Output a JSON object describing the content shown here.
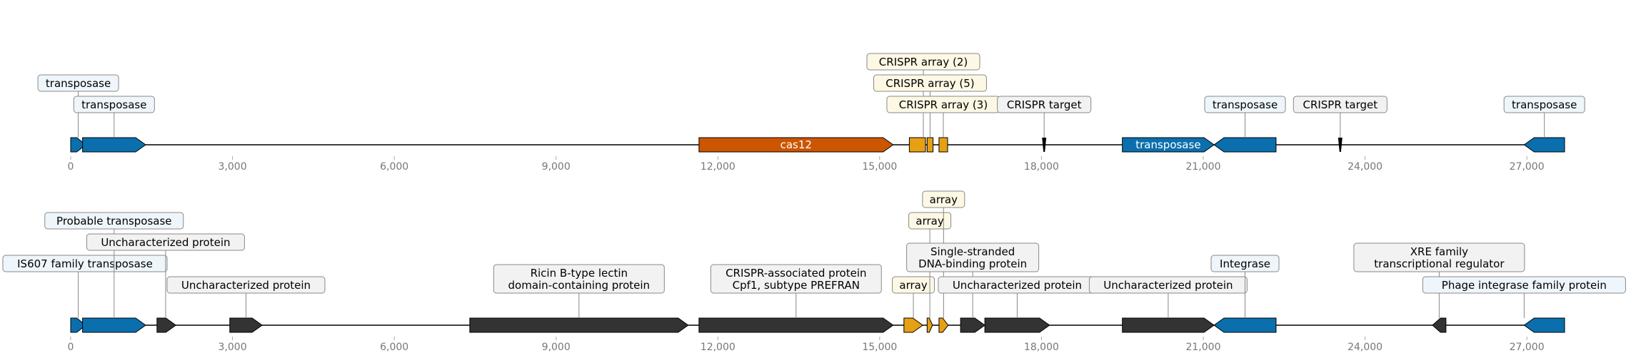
{
  "colors": {
    "transposase": "#0b6fad",
    "cas12": "#cc5500",
    "crispr": "#e6a014",
    "protein": "#333333",
    "box_blue_fill": "#eef6fb",
    "box_yellow_fill": "#fdf8e4",
    "box_grey_fill": "#f2f2f2",
    "tick_text": "#777777"
  },
  "axis": {
    "ticks": [
      "0",
      "3,000",
      "6,000",
      "9,000",
      "12,000",
      "15,000",
      "18,000",
      "21,000",
      "24,000",
      "27,000"
    ],
    "tick_values": [
      0,
      3000,
      6000,
      9000,
      12000,
      15000,
      18000,
      21000,
      24000,
      27000
    ],
    "max": 27700
  },
  "tracks": [
    {
      "features": [
        {
          "start": 0,
          "end": 280,
          "strand": 1,
          "kind": "transposase",
          "label": "transposase",
          "label_level": 3
        },
        {
          "start": 220,
          "end": 1390,
          "strand": 1,
          "kind": "transposase",
          "label": "transposase",
          "label_level": 2
        },
        {
          "start": 11650,
          "end": 15250,
          "strand": 1,
          "kind": "cas12",
          "inner_label": "cas12"
        },
        {
          "start": 15550,
          "end": 15850,
          "strand": 0,
          "kind": "crispr",
          "label": "CRISPR array (2)",
          "label_level": 4,
          "label_x": 15810
        },
        {
          "start": 15880,
          "end": 15990,
          "strand": 0,
          "kind": "crispr",
          "label": "CRISPR array (5)",
          "label_level": 3
        },
        {
          "start": 16100,
          "end": 16260,
          "strand": 0,
          "kind": "crispr",
          "label": "CRISPR array (3)",
          "label_level": 2
        },
        {
          "start": 18010,
          "end": 18090,
          "strand": 0,
          "kind": "target",
          "label": "CRISPR target",
          "label_level": 2
        },
        {
          "start": 19500,
          "end": 21200,
          "strand": 1,
          "kind": "transposase",
          "inner_label": "transposase"
        },
        {
          "start": 21200,
          "end": 22350,
          "strand": -1,
          "kind": "transposase",
          "label": "transposase",
          "label_level": 2
        },
        {
          "start": 23500,
          "end": 23580,
          "strand": 0,
          "kind": "target",
          "label": "CRISPR target",
          "label_level": 2
        },
        {
          "start": 26950,
          "end": 27700,
          "strand": -1,
          "kind": "transposase",
          "label": "transposase",
          "label_level": 2
        }
      ]
    },
    {
      "features": [
        {
          "start": 0,
          "end": 280,
          "strand": 1,
          "kind": "transposase",
          "label": "IS607 family transposase",
          "label_level": 3
        },
        {
          "start": 220,
          "end": 1390,
          "strand": 1,
          "kind": "transposase",
          "label": "Probable transposase",
          "label_level": 5
        },
        {
          "start": 1600,
          "end": 1950,
          "strand": 1,
          "kind": "protein",
          "label": "Uncharacterized protein",
          "label_level": 4,
          "label_x": 1760
        },
        {
          "start": 2950,
          "end": 3550,
          "strand": 1,
          "kind": "protein",
          "label": "Uncharacterized protein",
          "label_level": 2,
          "label_x": 3250
        },
        {
          "start": 7400,
          "end": 11450,
          "strand": 1,
          "kind": "protein",
          "label": "Ricin B-type lectin\ndomain-containing protein",
          "label_level": 2
        },
        {
          "start": 11650,
          "end": 15250,
          "strand": 1,
          "kind": "protein",
          "label": "CRISPR-associated protein\nCpf1, subtype PREFRAN",
          "label_level": 2
        },
        {
          "start": 15450,
          "end": 15800,
          "strand": 1,
          "kind": "crispr",
          "label": "array",
          "label_level": 2
        },
        {
          "start": 15880,
          "end": 15980,
          "strand": 1,
          "kind": "crispr",
          "label": "array",
          "label_level": 5
        },
        {
          "start": 16100,
          "end": 16270,
          "strand": 1,
          "kind": "crispr",
          "label": "array",
          "label_level": 6
        },
        {
          "start": 16500,
          "end": 16950,
          "strand": 1,
          "kind": "protein",
          "label": "Single-stranded\nDNA-binding protein",
          "label_level": 3
        },
        {
          "start": 16950,
          "end": 18150,
          "strand": 1,
          "kind": "protein",
          "label": "Uncharacterized protein",
          "label_level": 2
        },
        {
          "start": 19500,
          "end": 21200,
          "strand": 1,
          "kind": "protein",
          "label": "Uncharacterized protein",
          "label_level": 2
        },
        {
          "start": 21200,
          "end": 22350,
          "strand": -1,
          "kind": "transposase",
          "label": "Integrase",
          "label_level": 3
        },
        {
          "start": 25250,
          "end": 25500,
          "strand": -1,
          "kind": "protein",
          "label": "XRE family\ntranscriptional regulator",
          "label_level": 3
        },
        {
          "start": 26950,
          "end": 27700,
          "strand": -1,
          "kind": "transposase",
          "label": "Phage integrase family protein",
          "label_level": 2,
          "label_x": 26950
        }
      ]
    }
  ]
}
